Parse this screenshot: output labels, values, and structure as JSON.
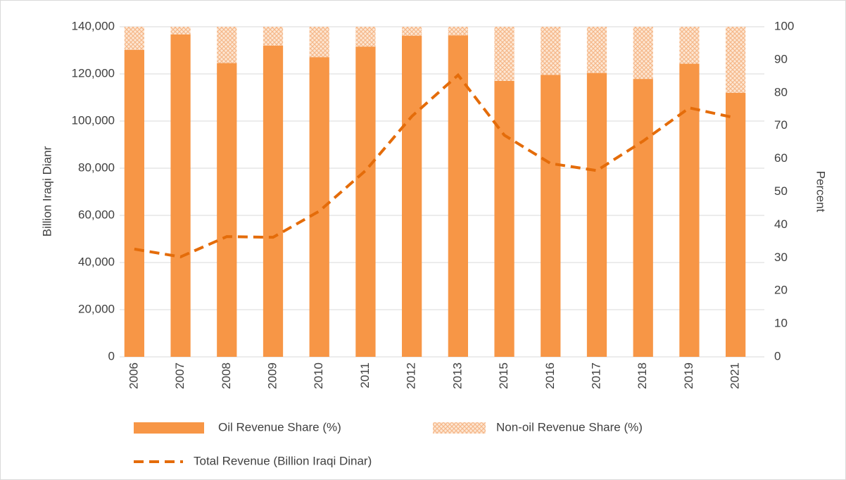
{
  "chart_data": {
    "type": "bar",
    "categories": [
      "2006",
      "2007",
      "2008",
      "2009",
      "2010",
      "2011",
      "2012",
      "2013",
      "2015",
      "2016",
      "2017",
      "2018",
      "2019",
      "2021"
    ],
    "series": [
      {
        "name": "Oil Revenue Share (%)",
        "type": "bar",
        "axis": "y2",
        "color": "#f79646",
        "values": [
          93,
          97.7,
          89,
          94.3,
          90.8,
          94,
          97.3,
          97.4,
          83.6,
          85.4,
          86,
          84.2,
          88.8,
          80
        ]
      },
      {
        "name": "Non-oil Revenue Share (%)",
        "type": "bar",
        "axis": "y2",
        "color": "#f9caa4",
        "pattern": "crosshatch",
        "values": [
          7,
          2.3,
          11,
          5.7,
          9.2,
          6,
          2.7,
          2.6,
          16.4,
          14.6,
          14,
          15.8,
          11.2,
          20
        ]
      },
      {
        "name": "Total Revenue  (Billion Iraqi Dinar)",
        "type": "line",
        "axis": "y",
        "color": "#e46c0a",
        "dashed": true,
        "values": [
          45700,
          42400,
          51000,
          50700,
          61800,
          79000,
          102000,
          119500,
          94000,
          82000,
          79000,
          91500,
          105600,
          101300
        ]
      }
    ],
    "stacked": true,
    "ylabel": "Billion Iraqi Dianr",
    "y2label": "Percent",
    "ylim": [
      0,
      140000
    ],
    "yticks": [
      0,
      {
        "value": 20000,
        "label": "20,000"
      },
      {
        "value": 40000,
        "label": "40,000"
      },
      {
        "value": 60000,
        "label": "60,000"
      },
      {
        "value": 80000,
        "label": "80,000"
      },
      {
        "value": 100000,
        "label": "100,000"
      },
      {
        "value": 120000,
        "label": "120,000"
      },
      {
        "value": 140000,
        "label": "140,000"
      }
    ],
    "y2lim": [
      0,
      100
    ],
    "y2ticks": [
      0,
      10,
      20,
      30,
      40,
      50,
      60,
      70,
      80,
      90,
      100
    ],
    "grid": true,
    "legend": "bottom"
  }
}
